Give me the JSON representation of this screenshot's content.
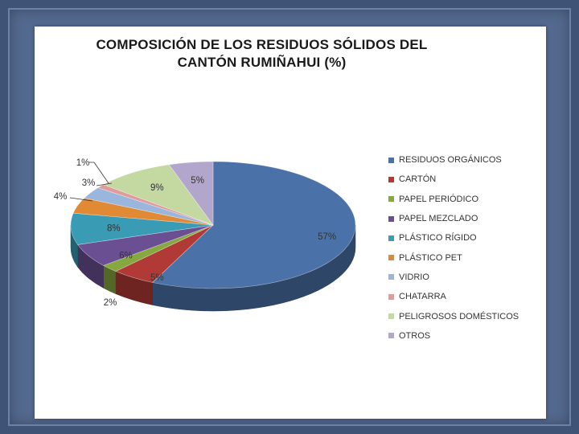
{
  "chart_data": {
    "type": "pie",
    "title": "COMPOSICIÓN DE LOS RESIDUOS SÓLIDOS DEL\nCANTÓN RUMIÑAHUI   (%)",
    "legend_position": "right",
    "slices": [
      {
        "name": "RESIDUOS ORGÁNICOS",
        "value": 57,
        "label": "57%",
        "color": "#4a72a8"
      },
      {
        "name": "CARTÓN",
        "value": 5,
        "label": "5%",
        "color": "#b13a36"
      },
      {
        "name": "PAPEL PERIÓDICO",
        "value": 2,
        "label": "2%",
        "color": "#86a840"
      },
      {
        "name": "PAPEL MEZCLADO",
        "value": 6,
        "label": "6%",
        "color": "#6a4f93"
      },
      {
        "name": "PLÁSTICO RÍGIDO",
        "value": 8,
        "label": "8%",
        "color": "#3a9bb5"
      },
      {
        "name": "PLÁSTICO PET",
        "value": 4,
        "label": "4%",
        "color": "#e08a35"
      },
      {
        "name": "VIDRIO",
        "value": 3,
        "label": "3%",
        "color": "#9ab6dc"
      },
      {
        "name": "CHATARRA",
        "value": 1,
        "label": "1%",
        "color": "#df9c9a"
      },
      {
        "name": "PELIGROSOS DOMÉSTICOS",
        "value": 9,
        "label": "9%",
        "color": "#c4d8a2"
      },
      {
        "name": "OTROS",
        "value": 5,
        "label": "5%",
        "color": "#b3a6cd"
      }
    ]
  }
}
